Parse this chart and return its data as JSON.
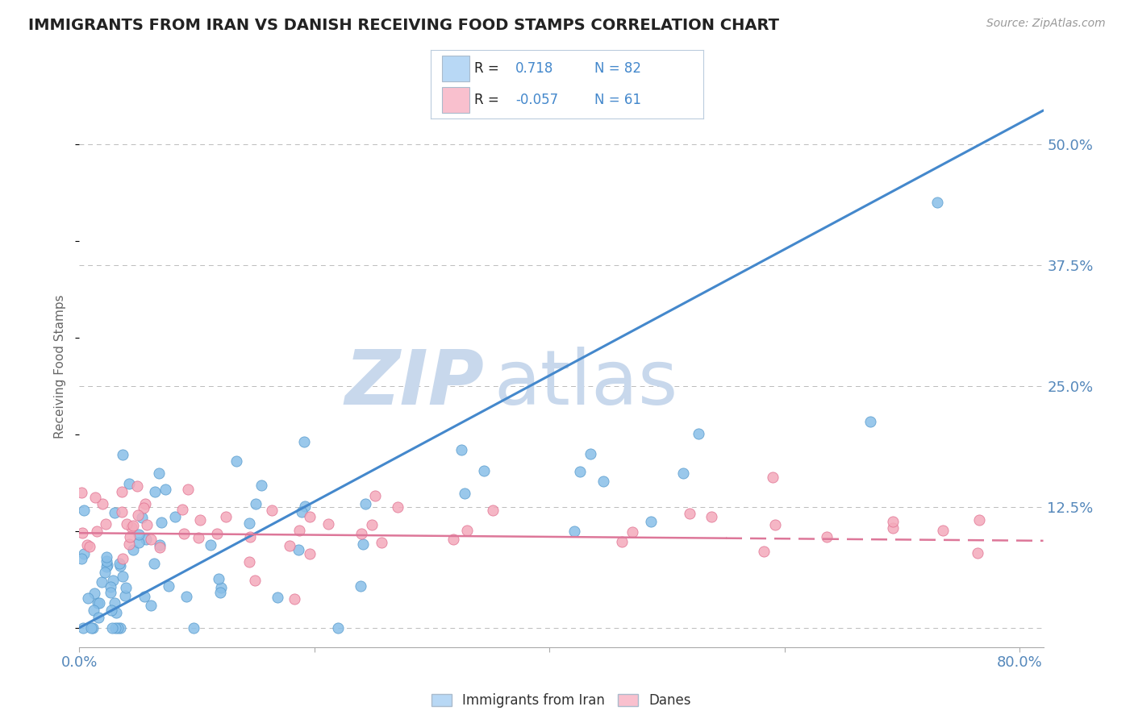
{
  "title": "IMMIGRANTS FROM IRAN VS DANISH RECEIVING FOOD STAMPS CORRELATION CHART",
  "source": "Source: ZipAtlas.com",
  "ylabel": "Receiving Food Stamps",
  "xlim": [
    0.0,
    0.82
  ],
  "ylim": [
    -0.02,
    0.56
  ],
  "yticks": [
    0.0,
    0.125,
    0.25,
    0.375,
    0.5
  ],
  "ytick_labels": [
    "",
    "12.5%",
    "25.0%",
    "37.5%",
    "50.0%"
  ],
  "xtick_positions": [
    0.0,
    0.2,
    0.4,
    0.6,
    0.8
  ],
  "xtick_labels": [
    "0.0%",
    "",
    "",
    "",
    "80.0%"
  ],
  "series1_color": "#89BFE8",
  "series2_color": "#F4AABB",
  "series1_edge": "#5599CC",
  "series2_edge": "#E07090",
  "series1_label": "Immigrants from Iran",
  "series2_label": "Danes",
  "series1_R": 0.718,
  "series1_N": 82,
  "series2_R": -0.057,
  "series2_N": 61,
  "line1_color": "#4488CC",
  "line2_color": "#DD7799",
  "line1_x": [
    0.0,
    0.82
  ],
  "line1_y": [
    0.0,
    0.535
  ],
  "line2_x": [
    0.0,
    0.82
  ],
  "line2_y": [
    0.098,
    0.09
  ],
  "watermark_zip": "ZIP",
  "watermark_atlas": "atlas",
  "watermark_color": "#C8D8EC",
  "background_color": "#FFFFFF",
  "grid_color": "#BBBBBB",
  "title_color": "#222222",
  "axis_tick_color": "#5588BB",
  "legend_box_color1": "#B8D8F5",
  "legend_box_color2": "#F9C0CE",
  "legend_r_color": "#222222",
  "legend_val_color": "#4488CC",
  "legend_border": "#AABBCC"
}
